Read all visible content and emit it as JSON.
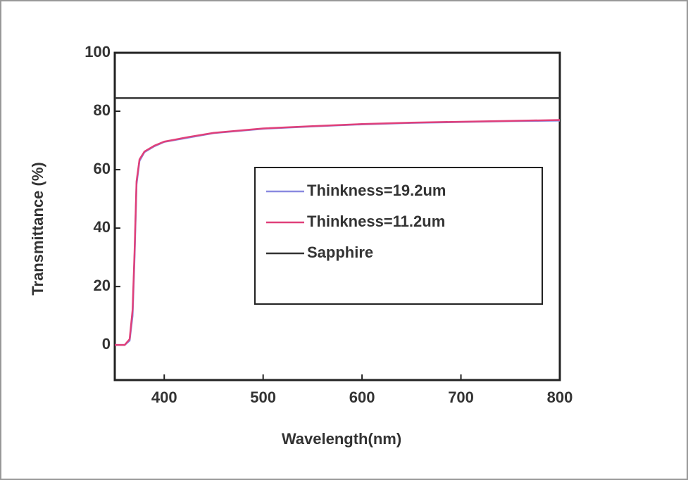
{
  "chart_data": {
    "type": "line",
    "xlabel": "Wavelength(nm)",
    "ylabel": "Transmittance (%)",
    "x": [
      350,
      360,
      365,
      368,
      370,
      372,
      375,
      380,
      390,
      400,
      425,
      450,
      500,
      550,
      600,
      650,
      700,
      750,
      800
    ],
    "series": [
      {
        "name": "Thinkness=19.2um",
        "color": "#8a8ae0",
        "values": [
          0,
          0,
          1.5,
          10,
          30,
          55,
          63,
          66,
          68,
          69.5,
          71,
          72.5,
          74,
          74.8,
          75.5,
          76,
          76.3,
          76.6,
          76.8
        ]
      },
      {
        "name": "Thinkness=11.2um",
        "color": "#e0407a",
        "values": [
          0,
          0,
          2,
          12,
          32,
          56,
          63.5,
          66.2,
          68.2,
          69.6,
          71.2,
          72.6,
          74.1,
          74.9,
          75.6,
          76.1,
          76.4,
          76.7,
          77
        ]
      },
      {
        "name": "Sapphire",
        "color": "#333333",
        "values": [
          84.5,
          84.5,
          84.5,
          84.5,
          84.5,
          84.5,
          84.5,
          84.5,
          84.5,
          84.5,
          84.5,
          84.5,
          84.5,
          84.5,
          84.5,
          84.5,
          84.5,
          84.5,
          84.5
        ]
      }
    ],
    "xlim": [
      350,
      800
    ],
    "xticks": [
      400,
      500,
      600,
      700,
      800
    ],
    "ylim": [
      -12,
      100
    ],
    "yticks": [
      0,
      20,
      40,
      60,
      80,
      100
    ]
  }
}
